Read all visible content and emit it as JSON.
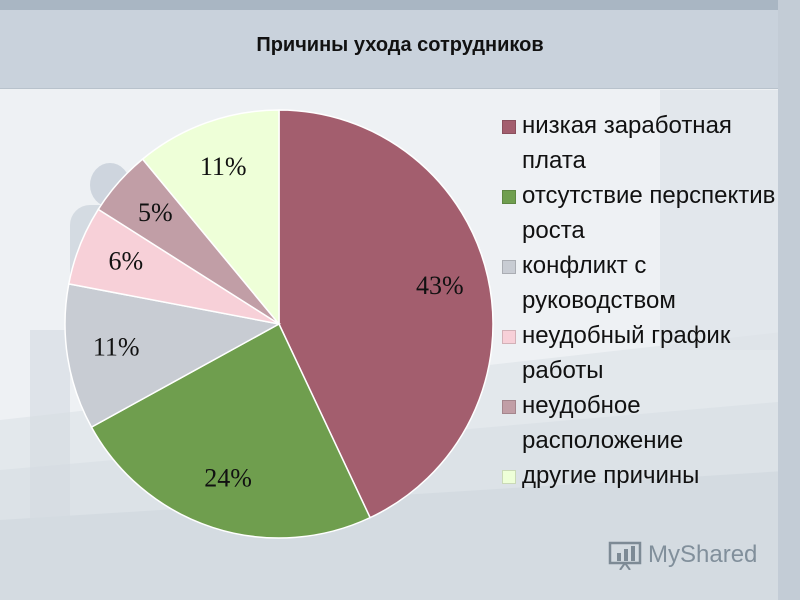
{
  "colors": {
    "header_band": "#c9d2dc",
    "background": "#eef1f4",
    "slice_colors": [
      "#a35e6e",
      "#6f9e4e",
      "#c8ccd3",
      "#f7d0d8",
      "#c19ea6",
      "#eeffd8"
    ]
  },
  "chart_data": {
    "type": "pie",
    "title": "Причины ухода сотрудников",
    "categories": [
      "низкая заработная плата",
      "отсутствие перспектив роста",
      "конфликт с руководством",
      "неудобный график работы",
      "неудобное расположение",
      "другие причины"
    ],
    "values": [
      43,
      24,
      11,
      6,
      5,
      11
    ],
    "data_labels": [
      "43%",
      "24%",
      "11%",
      "6%",
      "5%",
      "11%"
    ],
    "legend_position": "right",
    "start_angle_deg": 0,
    "direction": "clockwise"
  },
  "watermark": {
    "text": "MyShared",
    "icon": "presentation-chart-icon"
  }
}
